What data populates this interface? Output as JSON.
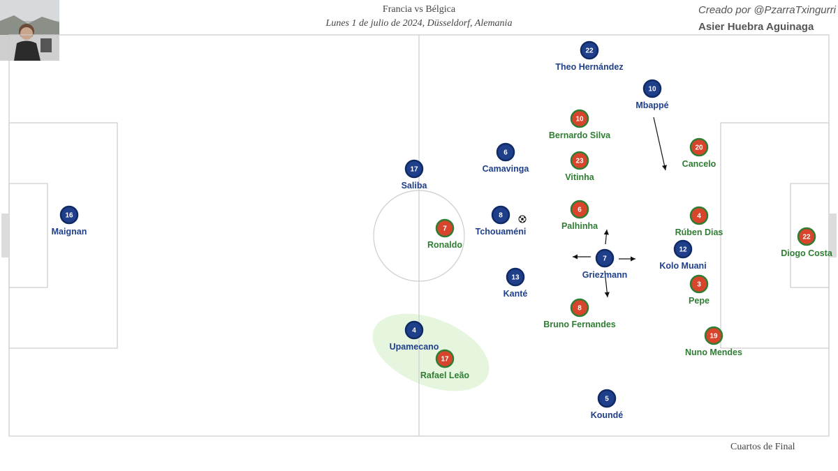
{
  "header": {
    "title": "Francia vs Bélgica",
    "subtitle": "Lunes 1 de julio de 2024, Düsseldorf, Alemania",
    "credit": "Creado por @PzarraTxingurri",
    "author": "Asier Huebra Aguinaga"
  },
  "footer": {
    "stage": "Cuartos de Final"
  },
  "colors": {
    "blue_fill": "#1f3f8a",
    "blue_text": "#1f3f8a",
    "red_fill": "#d6452c",
    "red_ring": "#2e7d32",
    "green_text": "#2e7d32",
    "lines": "#cccccc",
    "highlight": "#e3f5dc"
  },
  "france": [
    {
      "num": "16",
      "name": "Maignan"
    },
    {
      "num": "17",
      "name": "Saliba"
    },
    {
      "num": "4",
      "name": "Upamecano"
    },
    {
      "num": "22",
      "name": "Theo Hernández"
    },
    {
      "num": "10",
      "name": "Mbappé"
    },
    {
      "num": "6",
      "name": "Camavinga"
    },
    {
      "num": "8",
      "name": "Tchouaméni"
    },
    {
      "num": "13",
      "name": "Kanté"
    },
    {
      "num": "7",
      "name": "Griezmann"
    },
    {
      "num": "12",
      "name": "Kolo Muani"
    },
    {
      "num": "5",
      "name": "Koundé"
    }
  ],
  "portugal": [
    {
      "num": "7",
      "name": "Ronaldo"
    },
    {
      "num": "17",
      "name": "Rafael Leão"
    },
    {
      "num": "10",
      "name": "Bernardo Silva"
    },
    {
      "num": "23",
      "name": "Vitinha"
    },
    {
      "num": "6",
      "name": "Palhinha"
    },
    {
      "num": "8",
      "name": "Bruno Fernandes"
    },
    {
      "num": "20",
      "name": "Cancelo"
    },
    {
      "num": "4",
      "name": "Rúben Dias"
    },
    {
      "num": "3",
      "name": "Pepe"
    },
    {
      "num": "19",
      "name": "Nuno Mendes"
    },
    {
      "num": "22",
      "name": "Diogo Costa"
    }
  ],
  "ball_icon": "football-icon"
}
